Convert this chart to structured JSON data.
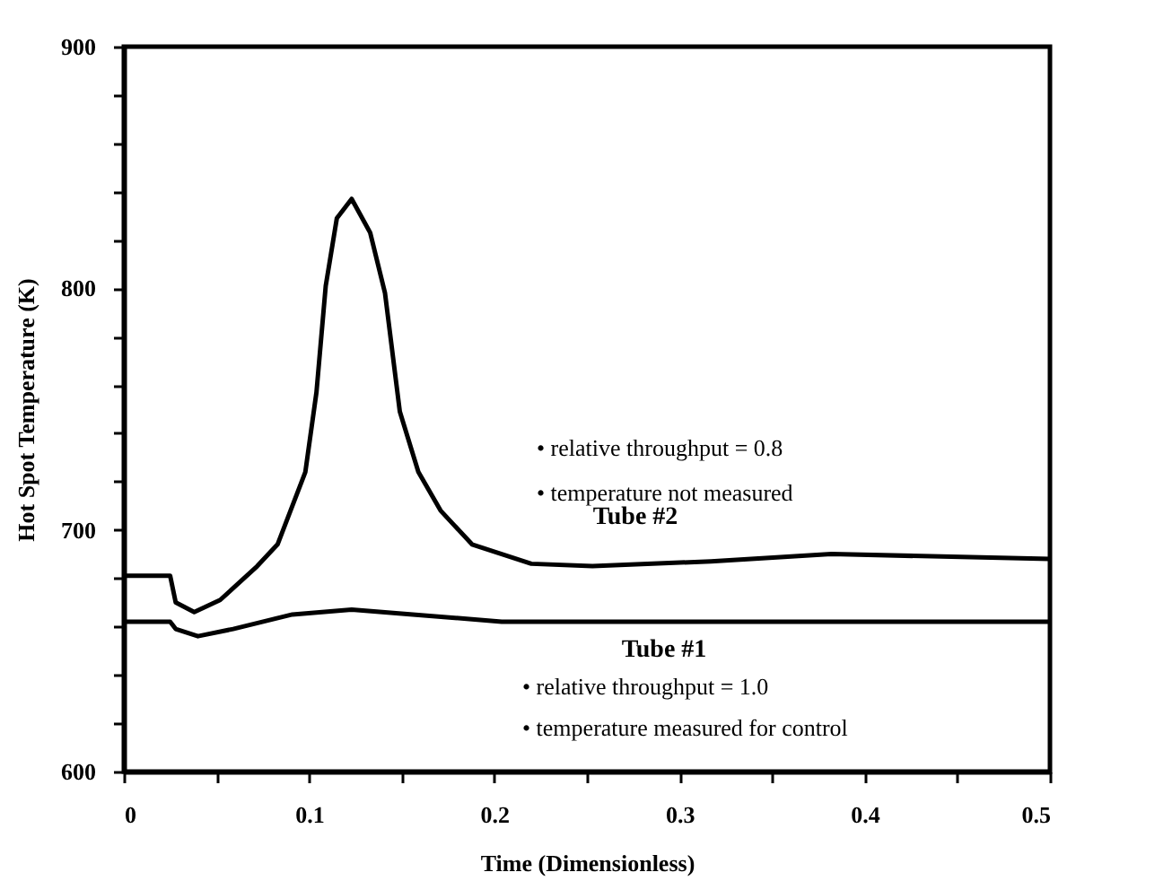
{
  "chart_data": {
    "type": "line",
    "xlabel": "Time (Dimensionless)",
    "ylabel": "Hot Spot Temperature (K)",
    "xlim": [
      0,
      0.5
    ],
    "xticks": [
      0,
      {
        "value": 0.05,
        "label": null
      },
      0.1,
      {
        "value": 0.15,
        "label": null
      },
      0.2,
      {
        "value": 0.25,
        "label": null
      },
      0.3,
      {
        "value": 0.35,
        "label": null
      },
      0.4,
      {
        "value": 0.45,
        "label": null
      },
      0.5
    ],
    "ylim": [
      600,
      900
    ],
    "yticks": [
      600,
      {
        "value": 620,
        "label": null
      },
      {
        "value": 640,
        "label": null
      },
      {
        "value": 660,
        "label": null
      },
      {
        "value": 680,
        "label": null
      },
      700,
      {
        "value": 720,
        "label": null
      },
      {
        "value": 740,
        "label": null
      },
      {
        "value": 760,
        "label": null
      },
      {
        "value": 780,
        "label": null
      },
      800,
      {
        "value": 820,
        "label": null
      },
      {
        "value": 840,
        "label": null
      },
      {
        "value": 860,
        "label": null
      },
      {
        "value": 880,
        "label": null
      },
      900
    ],
    "grid": false,
    "legend": false,
    "line_style": "solid",
    "series": [
      {
        "name": "Tube #2",
        "color": "#000000",
        "x": [
          0,
          0.025,
          0.028,
          0.038,
          0.052,
          0.072,
          0.083,
          0.098,
          0.104,
          0.109,
          0.115,
          0.123,
          0.133,
          0.141,
          0.149,
          0.159,
          0.171,
          0.188,
          0.22,
          0.253,
          0.317,
          0.382,
          0.5
        ],
        "values": [
          681,
          681,
          670,
          666,
          671,
          685,
          694,
          724,
          757,
          801,
          829,
          837,
          823,
          798,
          749,
          724,
          708,
          694,
          686,
          685,
          687,
          690,
          688
        ]
      },
      {
        "name": "Tube #1",
        "color": "#000000",
        "x": [
          0,
          0.025,
          0.028,
          0.04,
          0.059,
          0.091,
          0.123,
          0.156,
          0.204,
          0.5
        ],
        "values": [
          662,
          662,
          659,
          656,
          659,
          665,
          667,
          665,
          662,
          662
        ]
      }
    ],
    "annotations": [
      "• relative throughput = 0.8",
      "• temperature not measured",
      "• relative throughput = 1.0",
      "• temperature  measured for control"
    ]
  }
}
